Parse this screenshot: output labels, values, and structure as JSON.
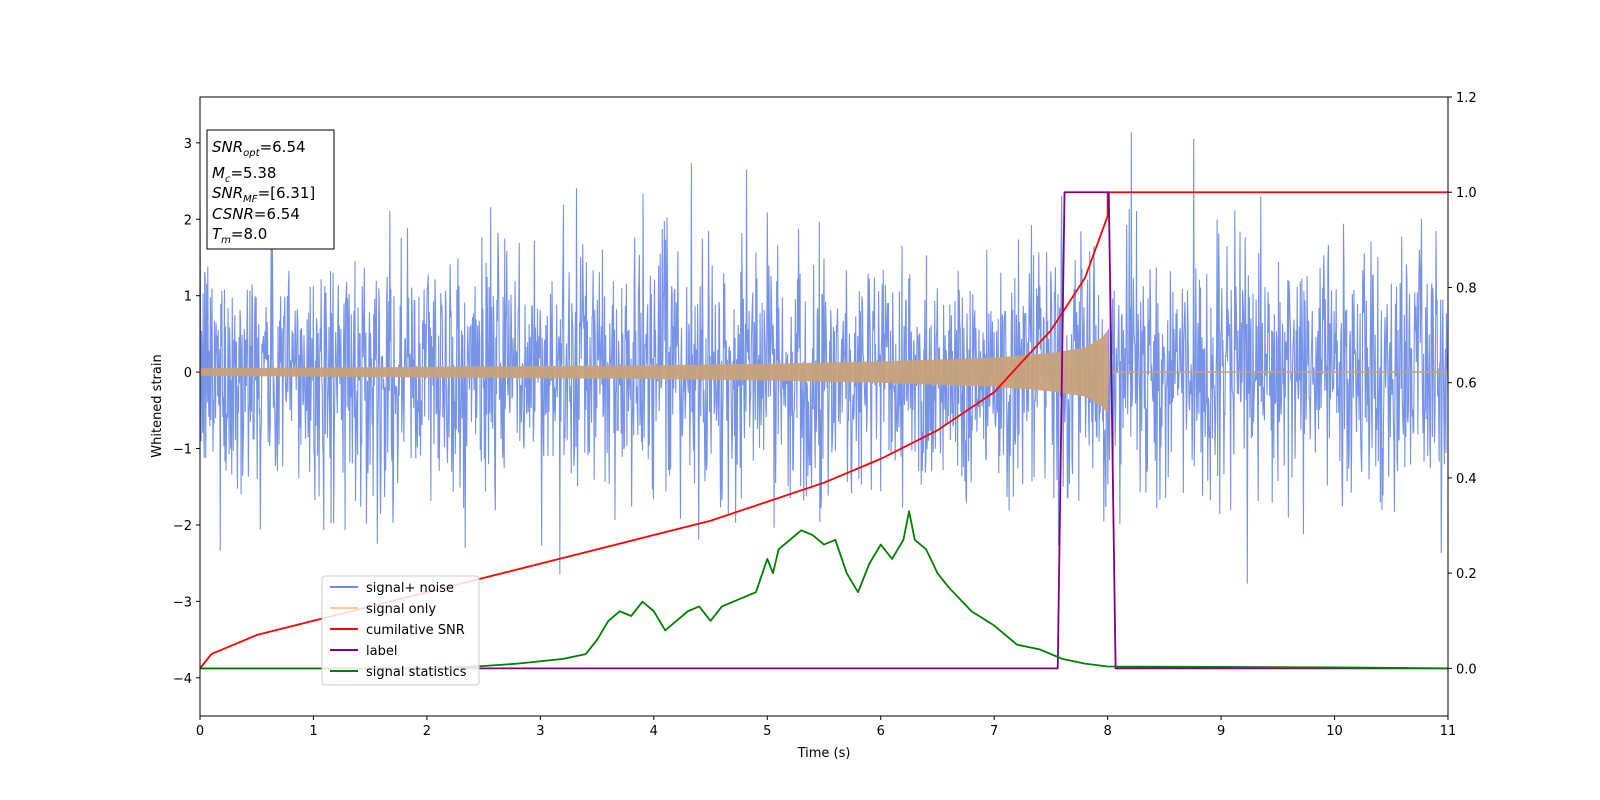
{
  "chart_data": {
    "type": "line",
    "xlabel": "Time (s)",
    "ylabel": "Whitened strain",
    "xlim": [
      0,
      11
    ],
    "ylim_left": [
      -4.5,
      3.6
    ],
    "ylim_right": [
      -0.1,
      1.2
    ],
    "x_ticks": [
      "0",
      "1",
      "2",
      "3",
      "4",
      "5",
      "6",
      "7",
      "8",
      "9",
      "10",
      "11"
    ],
    "y_left_ticks": [
      "−4",
      "−3",
      "−2",
      "−1",
      "0",
      "1",
      "2",
      "3"
    ],
    "y_right_ticks": [
      "0.0",
      "0.2",
      "0.4",
      "0.6",
      "0.8",
      "1.0",
      "1.2"
    ],
    "grid": false,
    "legend_position": "lower-left",
    "info_box": {
      "snr_opt": {
        "base": "SNR",
        "sub": "opt",
        "value": "=6.54"
      },
      "mc": {
        "base": "M",
        "sub": "c",
        "value": "=5.38"
      },
      "snr_mf": {
        "base": "SNR",
        "sub": "MF",
        "value": "=[6.31]"
      },
      "csnr": {
        "base": "CSNR",
        "value": "=6.54"
      },
      "tm": {
        "base": "T",
        "sub": "m",
        "value": "=8.0"
      }
    },
    "series": [
      {
        "name": "signal+ noise",
        "axis": "left",
        "color": "#6f8de6",
        "description_values": {
          "mean": 0,
          "noise_std": 0.8,
          "duration": [
            0,
            11
          ]
        }
      },
      {
        "name": "signal only",
        "axis": "left",
        "color": "#c8a27a",
        "envelope": {
          "x": [
            0,
            1,
            2,
            3,
            4,
            5,
            6,
            7,
            7.5,
            7.8,
            7.95,
            8.0,
            8.01
          ],
          "amplitude": [
            0.05,
            0.06,
            0.07,
            0.08,
            0.09,
            0.11,
            0.14,
            0.19,
            0.25,
            0.32,
            0.45,
            0.55,
            0.0
          ]
        }
      },
      {
        "name": "cumilative SNR",
        "axis": "right",
        "color": "#ff0000",
        "x": [
          0,
          0.1,
          0.5,
          1,
          1.5,
          2,
          2.5,
          3,
          3.5,
          4,
          4.5,
          5,
          5.5,
          6,
          6.5,
          7,
          7.5,
          7.8,
          8.0,
          8.0,
          11
        ],
        "y": [
          0.0,
          0.03,
          0.07,
          0.1,
          0.13,
          0.16,
          0.19,
          0.22,
          0.25,
          0.28,
          0.31,
          0.35,
          0.39,
          0.44,
          0.5,
          0.58,
          0.71,
          0.82,
          0.95,
          1.0,
          1.0
        ]
      },
      {
        "name": "label",
        "axis": "right",
        "color": "#800080",
        "x": [
          0,
          7.56,
          7.62,
          8.01,
          8.07,
          11
        ],
        "y": [
          0,
          0,
          1,
          1,
          0,
          0
        ]
      },
      {
        "name": "signal statistics",
        "axis": "right",
        "color": "#008000",
        "x": [
          0,
          1,
          2,
          2.5,
          2.8,
          3.0,
          3.2,
          3.4,
          3.5,
          3.6,
          3.7,
          3.8,
          3.9,
          4.0,
          4.1,
          4.2,
          4.3,
          4.4,
          4.5,
          4.6,
          4.7,
          4.8,
          4.9,
          5.0,
          5.05,
          5.1,
          5.2,
          5.3,
          5.4,
          5.5,
          5.6,
          5.7,
          5.8,
          5.9,
          6.0,
          6.1,
          6.2,
          6.25,
          6.3,
          6.4,
          6.5,
          6.6,
          6.8,
          7.0,
          7.2,
          7.4,
          7.6,
          7.8,
          8.0,
          9,
          10,
          11
        ],
        "y": [
          0,
          0,
          0,
          0.005,
          0.01,
          0.015,
          0.02,
          0.03,
          0.06,
          0.1,
          0.12,
          0.11,
          0.14,
          0.12,
          0.08,
          0.1,
          0.12,
          0.13,
          0.1,
          0.13,
          0.14,
          0.15,
          0.16,
          0.23,
          0.2,
          0.25,
          0.27,
          0.29,
          0.28,
          0.26,
          0.27,
          0.2,
          0.16,
          0.22,
          0.26,
          0.23,
          0.27,
          0.33,
          0.27,
          0.25,
          0.2,
          0.17,
          0.12,
          0.09,
          0.05,
          0.04,
          0.02,
          0.01,
          0.004,
          0.003,
          0.002,
          0.0
        ]
      }
    ]
  }
}
